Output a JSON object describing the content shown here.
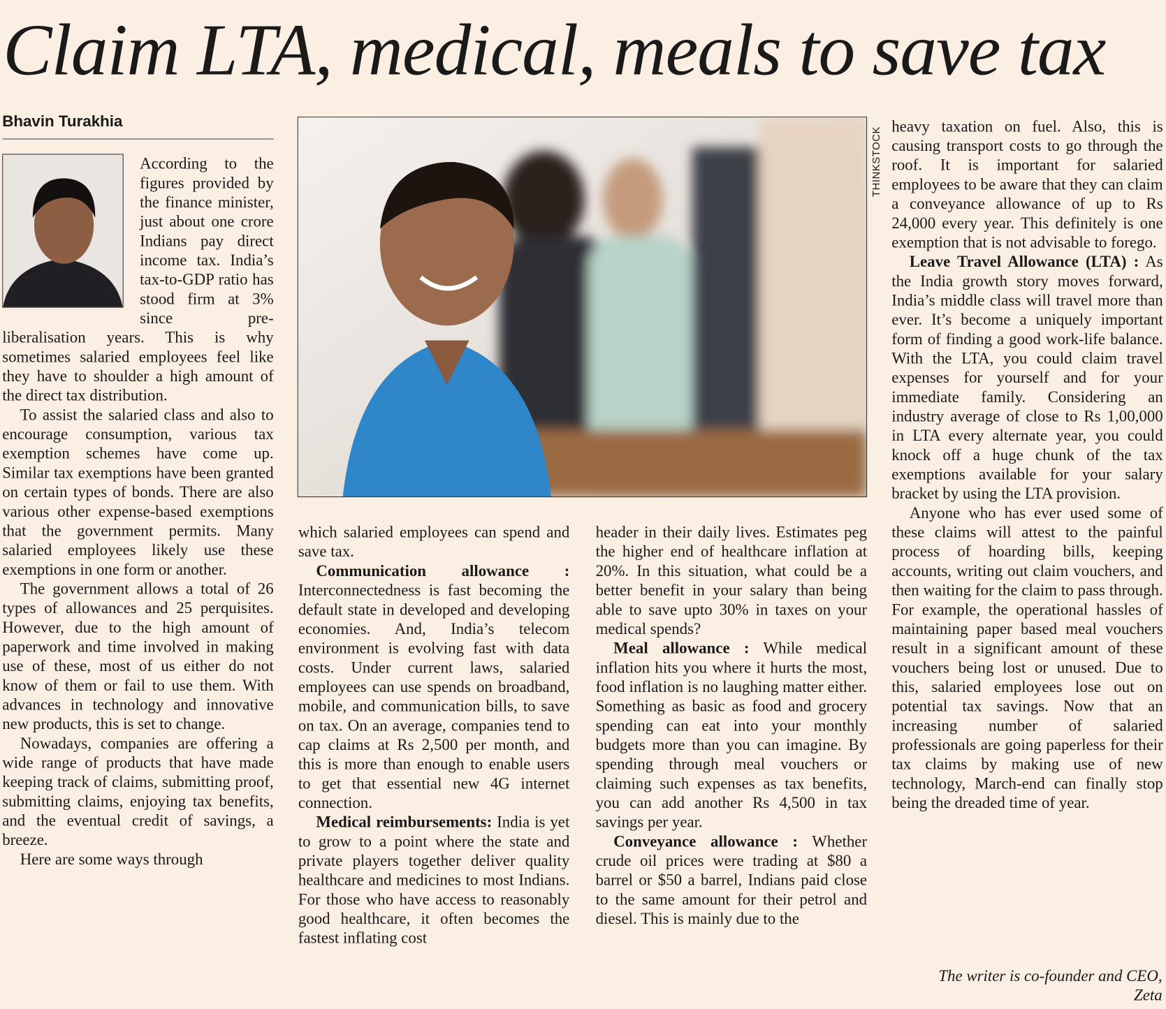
{
  "headline": "Claim LTA, medical, meals to save tax",
  "byline": "Bhavin Turakhia",
  "photo_credit": "THINKSTOCK",
  "columns": [
    {
      "paragraphs": [
        {
          "text": "According to the figures provided by the finance minister, just about one crore Indians pay direct income tax. India’s tax-to-GDP ratio has stood firm at 3% since pre-liberalisation years. This is why sometimes salaried employees feel like they have to shoulder a high amount of the direct tax distribution."
        },
        {
          "text": "To assist the salaried class and also to encourage consumption, various tax exemption schemes have come up. Similar tax exemptions have been granted on certain types of bonds. There are also various other expense-based exemptions that the government permits. Many salaried employees likely use these exemptions in one form or another."
        },
        {
          "text": "The government allows a total of 26 types of allowances and 25 perquisites. However, due to the high amount of paperwork and time involved in making use of these, most of us either do not know of them or fail to use them. With advances in technology and innovative new products, this is set to change."
        },
        {
          "text": "Nowadays, companies are offering a wide range of products that have made keeping track of claims, submitting proof, submitting claims, enjoying tax benefits, and the eventual credit of savings, a breeze."
        },
        {
          "text": "Here are some ways through"
        }
      ]
    },
    {
      "paragraphs": [
        {
          "text": "which salaried employees can spend and save tax."
        },
        {
          "lead": "Communication allowance :",
          "text": "Interconnectedness is fast becoming the default state in developed and developing economies. And, India’s telecom environment is evolving fast with data costs. Under current laws, salaried employees can use spends on broadband, mobile, and communication bills, to save on tax. On an average, companies tend to cap claims at Rs 2,500 per month, and this is more than enough to enable users to get that essential new 4G internet connection."
        },
        {
          "lead": "Medical reimbursements:",
          "text": "India is yet to grow to a point where the state and private players together deliver quality healthcare and medicines to most Indians. For those who have access to reasonably good healthcare, it often becomes the fastest inflating cost"
        }
      ]
    },
    {
      "paragraphs": [
        {
          "text": "header in their daily lives. Estimates peg the higher end of healthcare inflation at 20%. In this situation, what could be a better benefit in your salary than being able to save upto 30% in taxes on your medical spends?"
        },
        {
          "lead": "Meal allowance :",
          "text": "While medical inflation hits you where it hurts the most, food inflation is no laughing matter either. Something as basic as food and grocery spending can eat into your monthly budgets more than you can imagine. By spending through meal vouchers or claiming such expenses as tax benefits, you can add another Rs 4,500 in tax savings per year."
        },
        {
          "lead": "Conveyance allowance :",
          "text": "Whether crude oil prices were trading at $80 a barrel or $50 a barrel, Indians paid close to the same amount for their petrol and diesel. This is mainly due to the"
        }
      ]
    },
    {
      "paragraphs": [
        {
          "text": "heavy taxation on fuel. Also, this is causing transport costs to go through the roof. It is important for salaried employees to be aware that they can claim a conveyance allowance of up to Rs 24,000 every year. This definitely is one exemption that is not advisable to forego."
        },
        {
          "lead": "Leave Travel Allowance (LTA) :",
          "text": "As the India growth story moves forward, India’s middle class will travel more than ever. It’s become a uniquely important form of finding a good work-life balance. With the LTA, you could claim travel expenses for yourself and for your immediate family. Considering an industry average of close to Rs 1,00,000 in LTA every alternate year, you could knock off a huge chunk of the tax exemptions available for your salary bracket by using the LTA provision."
        },
        {
          "text": "Anyone who has ever used some of these claims will attest to the painful process of hoarding bills, keeping accounts, writing out claim vouchers, and then waiting for the claim to pass through. For example, the operational hassles of maintaining paper based meal vouchers result in a significant amount of these vouchers being lost or unused. Due to this, salaried employees lose out on potential tax savings. Now that an increasing number of salaried professionals are going paperless for their tax claims by making use of new technology, March-end can finally stop being the dreaded time of year."
        }
      ]
    }
  ],
  "signature": "The writer is co-founder and CEO, Zeta"
}
